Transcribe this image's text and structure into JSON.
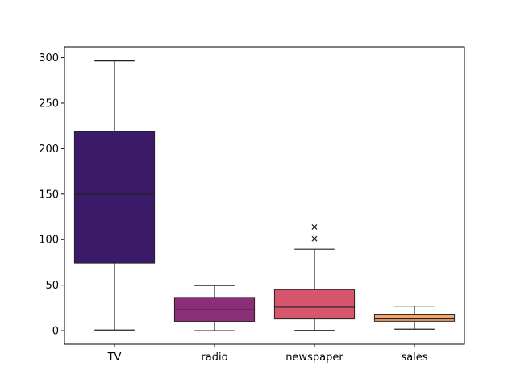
{
  "chart_data": {
    "type": "box",
    "title": "",
    "xlabel": "",
    "ylabel": "",
    "categories": [
      "TV",
      "radio",
      "newspaper",
      "sales"
    ],
    "colors": [
      "#3b1a6a",
      "#8a2e78",
      "#d6566d",
      "#f5a46a"
    ],
    "ylim": [
      -15,
      312
    ],
    "yticks": [
      0,
      50,
      100,
      150,
      200,
      250,
      300
    ],
    "ytick_labels": [
      "0",
      "50",
      "100",
      "150",
      "200",
      "250",
      "300"
    ],
    "grid": false,
    "legend": "none",
    "boxes": [
      {
        "name": "TV",
        "min": 0.7,
        "q1": 74.4,
        "median": 149.8,
        "q3": 218.8,
        "max": 296.4,
        "outliers": []
      },
      {
        "name": "radio",
        "min": 0.0,
        "q1": 10.0,
        "median": 22.9,
        "q3": 36.5,
        "max": 49.6,
        "outliers": []
      },
      {
        "name": "newspaper",
        "min": 0.3,
        "q1": 12.8,
        "median": 25.8,
        "q3": 45.1,
        "max": 89.4,
        "outliers": [
          100.9,
          114.0
        ]
      },
      {
        "name": "sales",
        "min": 1.6,
        "q1": 10.4,
        "median": 12.9,
        "q3": 17.4,
        "max": 27.0,
        "outliers": []
      }
    ]
  }
}
